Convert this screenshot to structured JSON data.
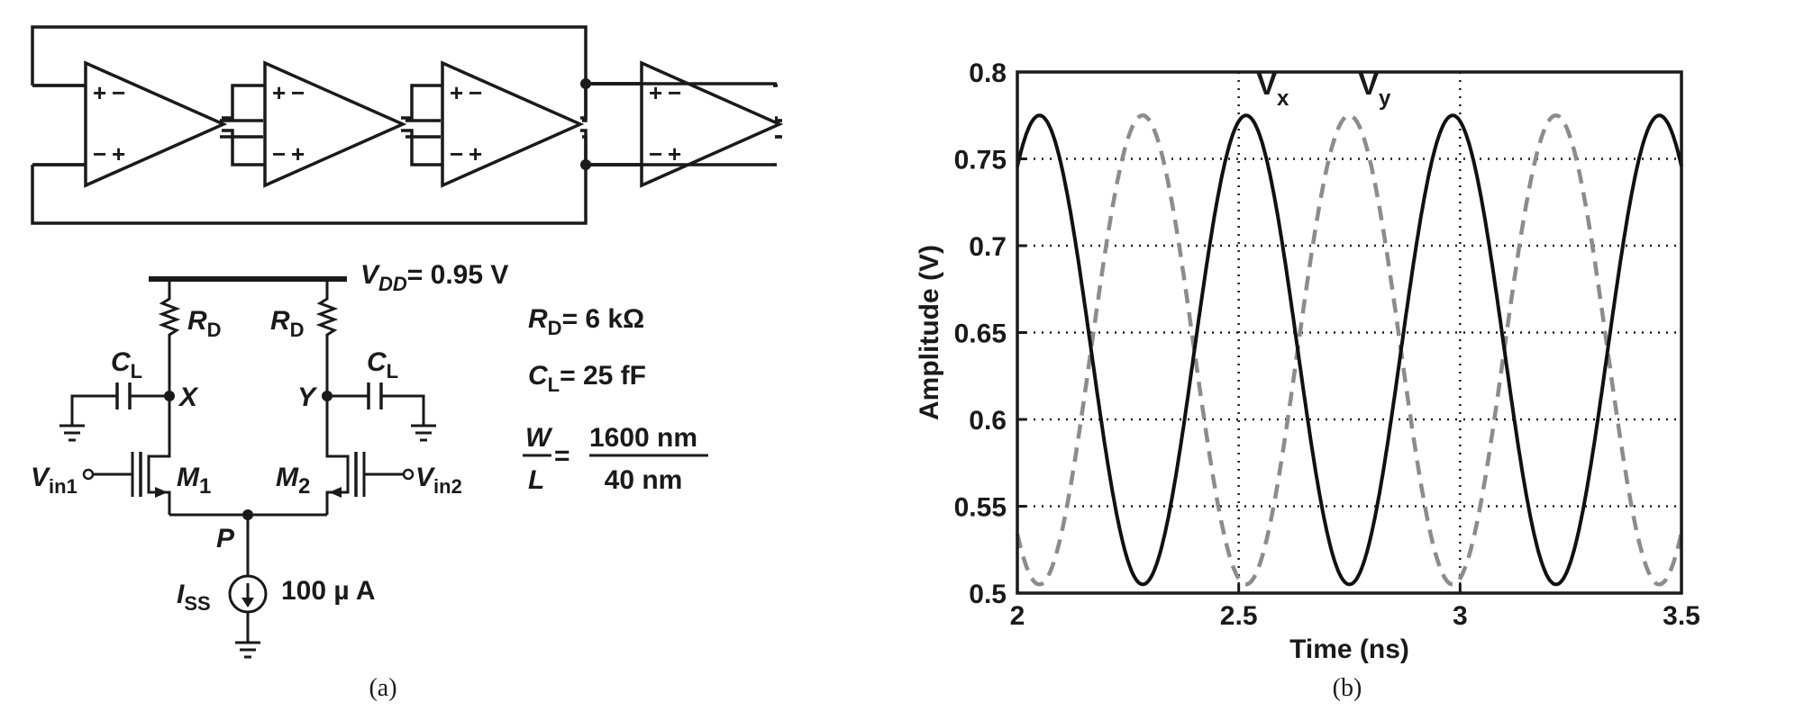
{
  "panel_a": {
    "caption": "(a)",
    "vdd_label": "V",
    "vdd_sub": "DD",
    "vdd_value": "= 0.95 V",
    "rd_left": "R",
    "rd_left_sub": "D",
    "rd_right": "R",
    "rd_right_sub": "D",
    "cl_left": "C",
    "cl_left_sub": "L",
    "cl_right": "C",
    "cl_right_sub": "L",
    "node_x": "X",
    "node_y": "Y",
    "node_p": "P",
    "vin1": "V",
    "vin1_sub": "in1",
    "vin2": "V",
    "vin2_sub": "in2",
    "m1": "M",
    "m1_sub": "1",
    "m2": "M",
    "m2_sub": "2",
    "iss": "I",
    "iss_sub": "SS",
    "iss_value": "100 µ A",
    "rd_spec": "R",
    "rd_spec_sub": "D",
    "rd_spec_value": "= 6 kΩ",
    "cl_spec": "C",
    "cl_spec_sub": "L",
    "cl_spec_value": "= 25 fF",
    "wl_w": "W",
    "wl_l": "L",
    "wl_eq": "=",
    "wl_num": "1600 nm",
    "wl_den": "40 nm",
    "amp_plus": "+",
    "amp_minus": "−"
  },
  "panel_b": {
    "caption": "(b)"
  },
  "chart_data": {
    "type": "line",
    "xlabel": "Time (ns)",
    "ylabel": "Amplitude (V)",
    "xlim": [
      2,
      3.5
    ],
    "ylim": [
      0.5,
      0.8
    ],
    "xticks": [
      "2",
      "2.5",
      "3",
      "3.5"
    ],
    "yticks": [
      "0.5",
      "0.55",
      "0.6",
      "0.65",
      "0.7",
      "0.75",
      "0.8"
    ],
    "grid": true,
    "series": [
      {
        "name": "V",
        "name_sub": "x",
        "style": "solid",
        "color": "#111111",
        "offset": 0.64,
        "amplitude": 0.135,
        "period_ns": 0.4667,
        "first_peak_ns": 2.05
      },
      {
        "name": "V",
        "name_sub": "y",
        "style": "dashed",
        "color": "#8c8c8c",
        "offset": 0.64,
        "amplitude": 0.135,
        "period_ns": 0.4667,
        "first_peak_ns": 2.283
      }
    ]
  }
}
